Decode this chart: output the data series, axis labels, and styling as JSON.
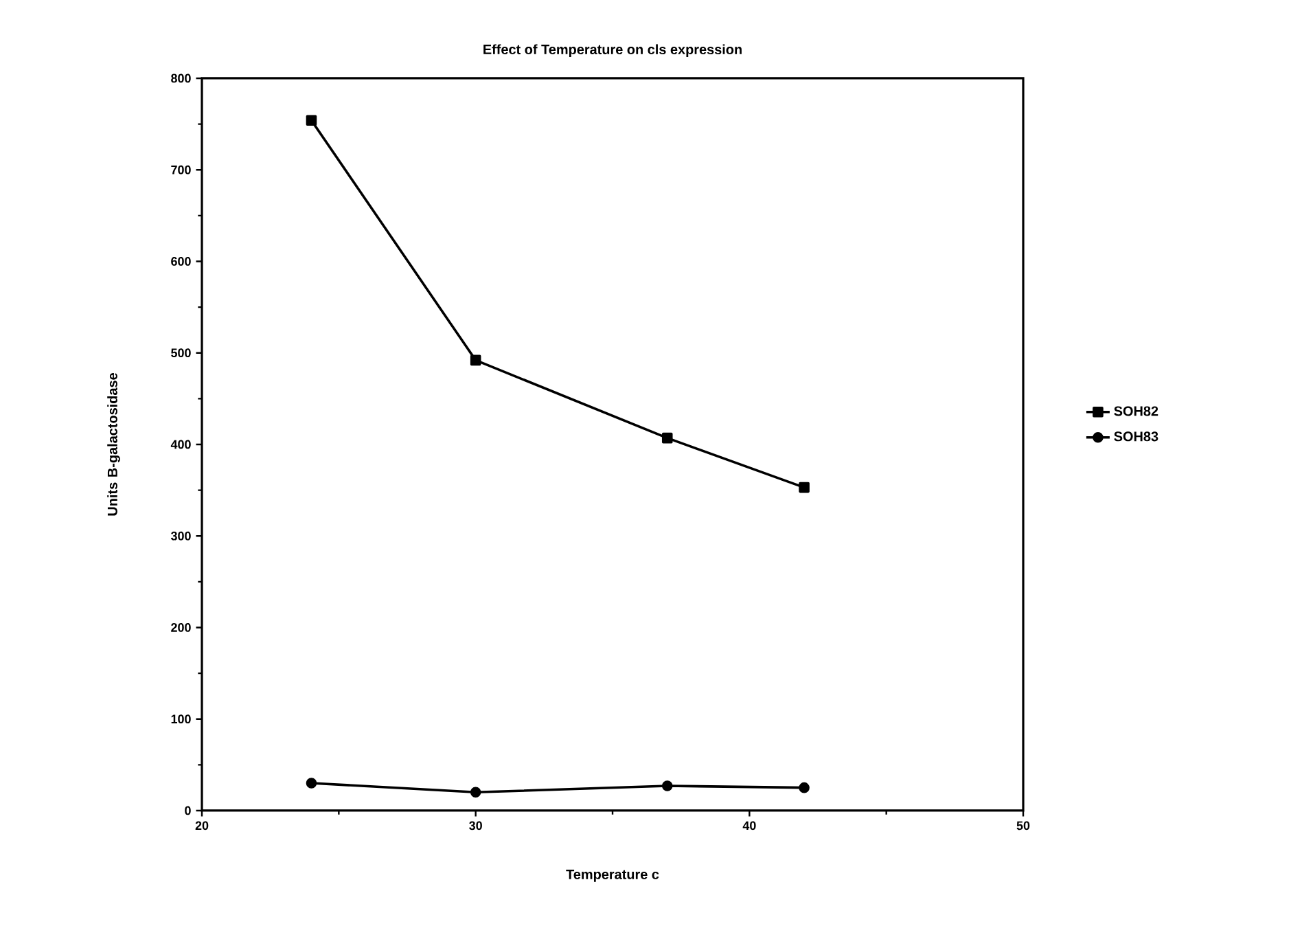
{
  "chart_data": {
    "type": "line",
    "title": "Effect of Temperature on cls expression",
    "xlabel": "Temperature    c",
    "ylabel": "Units B-galactosidase",
    "x": [
      24,
      30,
      37,
      42
    ],
    "series": [
      {
        "name": "SOH82",
        "color": "#000000",
        "marker": "square",
        "values": [
          754,
          492,
          407,
          353
        ]
      },
      {
        "name": "SOH83",
        "color": "#000000",
        "marker": "circle",
        "values": [
          30,
          20,
          27,
          25
        ]
      }
    ],
    "xlim": [
      20,
      50
    ],
    "xticks": [
      20,
      30,
      40,
      50
    ],
    "ylim": [
      0,
      800
    ],
    "yticks": [
      0,
      100,
      200,
      300,
      400,
      500,
      600,
      700,
      800
    ],
    "grid": false,
    "legend": "right",
    "line_style": "solid"
  }
}
